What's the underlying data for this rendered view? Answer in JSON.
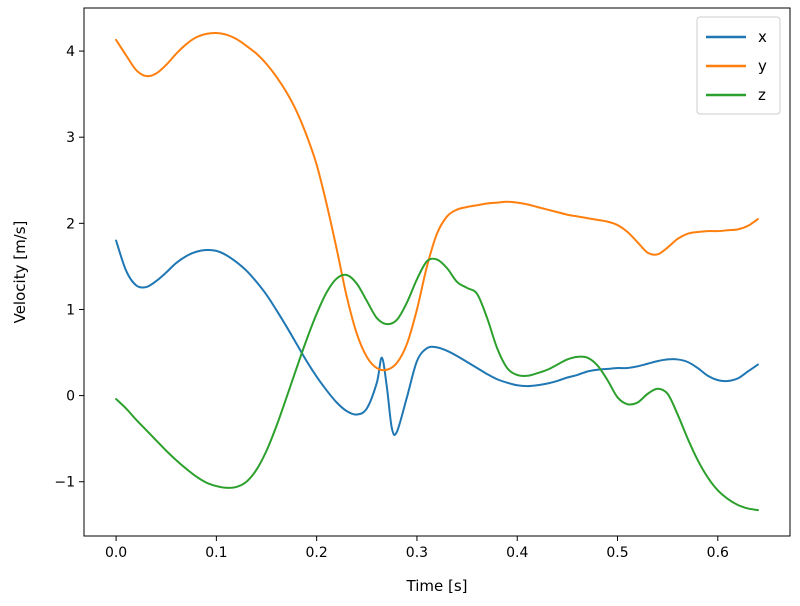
{
  "chart_data": {
    "type": "line",
    "title": "",
    "xlabel": "Time [s]",
    "ylabel": "Velocity [m/s]",
    "xlim": [
      -0.032,
      0.672
    ],
    "ylim": [
      -1.63,
      4.5
    ],
    "xticks": [
      0.0,
      0.1,
      0.2,
      0.3,
      0.4,
      0.5,
      0.6
    ],
    "xtick_labels": [
      "0.0",
      "0.1",
      "0.2",
      "0.3",
      "0.4",
      "0.5",
      "0.6"
    ],
    "yticks": [
      -1,
      0,
      1,
      2,
      3,
      4
    ],
    "ytick_labels": [
      "−1",
      "0",
      "1",
      "2",
      "3",
      "4"
    ],
    "grid": false,
    "legend": "top-right",
    "series": [
      {
        "name": "x",
        "color": "#1f77b4",
        "x": [
          0.0,
          0.01,
          0.02,
          0.03,
          0.04,
          0.05,
          0.06,
          0.07,
          0.08,
          0.09,
          0.1,
          0.11,
          0.12,
          0.13,
          0.14,
          0.15,
          0.16,
          0.17,
          0.18,
          0.19,
          0.2,
          0.21,
          0.22,
          0.23,
          0.24,
          0.25,
          0.26,
          0.265,
          0.27,
          0.275,
          0.28,
          0.29,
          0.3,
          0.31,
          0.32,
          0.33,
          0.34,
          0.35,
          0.36,
          0.37,
          0.38,
          0.39,
          0.4,
          0.41,
          0.42,
          0.43,
          0.44,
          0.45,
          0.46,
          0.47,
          0.48,
          0.49,
          0.5,
          0.51,
          0.52,
          0.53,
          0.54,
          0.55,
          0.56,
          0.57,
          0.58,
          0.59,
          0.6,
          0.61,
          0.62,
          0.63,
          0.64
        ],
        "values": [
          1.8,
          1.45,
          1.28,
          1.26,
          1.33,
          1.43,
          1.54,
          1.62,
          1.67,
          1.69,
          1.68,
          1.63,
          1.55,
          1.45,
          1.32,
          1.17,
          0.99,
          0.8,
          0.6,
          0.4,
          0.22,
          0.06,
          -0.08,
          -0.18,
          -0.22,
          -0.15,
          0.15,
          0.44,
          0.1,
          -0.38,
          -0.42,
          -0.02,
          0.4,
          0.55,
          0.56,
          0.52,
          0.46,
          0.39,
          0.32,
          0.25,
          0.19,
          0.15,
          0.12,
          0.11,
          0.12,
          0.14,
          0.17,
          0.21,
          0.24,
          0.28,
          0.3,
          0.31,
          0.32,
          0.32,
          0.34,
          0.37,
          0.4,
          0.42,
          0.42,
          0.39,
          0.32,
          0.23,
          0.18,
          0.17,
          0.2,
          0.28,
          0.36
        ]
      },
      {
        "name": "y",
        "color": "#ff7f0e",
        "x": [
          0.0,
          0.01,
          0.02,
          0.03,
          0.04,
          0.05,
          0.06,
          0.07,
          0.08,
          0.09,
          0.1,
          0.11,
          0.12,
          0.13,
          0.14,
          0.15,
          0.16,
          0.17,
          0.18,
          0.19,
          0.2,
          0.21,
          0.22,
          0.23,
          0.24,
          0.25,
          0.26,
          0.27,
          0.28,
          0.29,
          0.3,
          0.31,
          0.32,
          0.33,
          0.34,
          0.35,
          0.36,
          0.37,
          0.38,
          0.39,
          0.4,
          0.41,
          0.42,
          0.43,
          0.44,
          0.45,
          0.46,
          0.47,
          0.48,
          0.49,
          0.5,
          0.51,
          0.52,
          0.53,
          0.54,
          0.55,
          0.56,
          0.57,
          0.58,
          0.59,
          0.6,
          0.61,
          0.62,
          0.63,
          0.64
        ],
        "values": [
          4.13,
          3.95,
          3.78,
          3.71,
          3.74,
          3.84,
          3.97,
          4.08,
          4.16,
          4.2,
          4.21,
          4.19,
          4.14,
          4.06,
          3.97,
          3.85,
          3.7,
          3.52,
          3.3,
          3.02,
          2.68,
          2.22,
          1.7,
          1.15,
          0.72,
          0.45,
          0.32,
          0.3,
          0.38,
          0.6,
          1.0,
          1.5,
          1.88,
          2.08,
          2.16,
          2.19,
          2.21,
          2.23,
          2.24,
          2.25,
          2.24,
          2.22,
          2.19,
          2.16,
          2.13,
          2.1,
          2.08,
          2.06,
          2.04,
          2.02,
          1.98,
          1.9,
          1.78,
          1.66,
          1.64,
          1.72,
          1.82,
          1.88,
          1.9,
          1.91,
          1.91,
          1.92,
          1.93,
          1.97,
          2.05
        ]
      },
      {
        "name": "z",
        "color": "#2ca02c",
        "x": [
          0.0,
          0.01,
          0.02,
          0.03,
          0.04,
          0.05,
          0.06,
          0.07,
          0.08,
          0.09,
          0.1,
          0.11,
          0.12,
          0.13,
          0.14,
          0.15,
          0.16,
          0.17,
          0.18,
          0.19,
          0.2,
          0.21,
          0.22,
          0.23,
          0.24,
          0.25,
          0.26,
          0.27,
          0.28,
          0.29,
          0.3,
          0.31,
          0.32,
          0.33,
          0.34,
          0.35,
          0.36,
          0.37,
          0.38,
          0.39,
          0.4,
          0.41,
          0.42,
          0.43,
          0.44,
          0.45,
          0.46,
          0.47,
          0.48,
          0.49,
          0.5,
          0.51,
          0.52,
          0.53,
          0.54,
          0.55,
          0.56,
          0.57,
          0.58,
          0.59,
          0.6,
          0.61,
          0.62,
          0.63,
          0.64
        ],
        "values": [
          -0.04,
          -0.15,
          -0.28,
          -0.4,
          -0.52,
          -0.64,
          -0.75,
          -0.85,
          -0.94,
          -1.01,
          -1.05,
          -1.07,
          -1.06,
          -1.0,
          -0.86,
          -0.64,
          -0.35,
          -0.02,
          0.32,
          0.65,
          0.95,
          1.2,
          1.36,
          1.4,
          1.3,
          1.1,
          0.9,
          0.83,
          0.88,
          1.08,
          1.35,
          1.56,
          1.58,
          1.48,
          1.32,
          1.25,
          1.18,
          0.9,
          0.55,
          0.32,
          0.24,
          0.23,
          0.26,
          0.3,
          0.36,
          0.42,
          0.45,
          0.44,
          0.35,
          0.18,
          -0.02,
          -0.1,
          -0.08,
          0.02,
          0.08,
          0.02,
          -0.22,
          -0.5,
          -0.75,
          -0.95,
          -1.1,
          -1.2,
          -1.27,
          -1.31,
          -1.33
        ]
      }
    ]
  }
}
